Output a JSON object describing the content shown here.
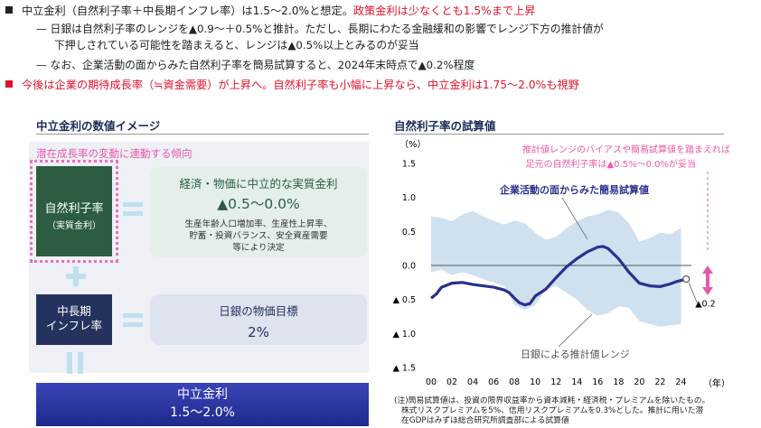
{
  "header": {
    "b1_prefix": "中立金利（自然利子率＋中長期インフレ率）は1.5～2.0%と想定。",
    "b1_red": "政策金利は少なくとも1.5%まで上昇",
    "sub1_line1": "— 日銀は自然利子率のレンジを▲0.9～＋0.5%と推計。ただし、長期にわたる金融緩和の影響でレンジ下方の推計値が",
    "sub1_line2": "下押しされている可能性を踏まえると、レンジは▲0.5%以上とみるのが妥当",
    "sub2": "— なお、企業活動の面からみた自然利子率を簡易試算すると、2024年末時点で▲0.2%程度",
    "b2": "今後は企業の期待成長率（≒資金需要）が上昇へ。自然利子率も小幅に上昇なら、中立金利は1.75～2.0%も視野"
  },
  "left": {
    "title": "中立金利の数値イメージ",
    "pink_label": "潜在成長率の変動に連動する傾向",
    "natural_rate_label": "自然利子率",
    "natural_rate_sub": "（実質金利）",
    "neutral_box_title": "経済・物価に中立的な実質金利",
    "neutral_box_value": "▲0.5～0.0%",
    "neutral_box_note1": "生産年齢人口増加率、生産性上昇率、",
    "neutral_box_note2": "貯蓄・投資バランス、安全資産需要",
    "neutral_box_note3": "等により決定",
    "inflation_label1": "中長期",
    "inflation_label2": "インフレ率",
    "boj_target_title": "日銀の物価目標",
    "boj_target_value": "2%",
    "result_title": "中立金利",
    "result_value": "1.5～2.0%"
  },
  "right": {
    "title": "自然利子率の試算値",
    "annotation_line1": "推計値レンジのバイアスや簡易試算値を踏まえれば",
    "annotation_line2": "足元の自然利子率は▲0.5%～0.0%が妥当",
    "line_label": "企業活動の面からみた簡易試算値",
    "range_label": "日銀による推計値レンジ",
    "endpoint_label": "▲0.2",
    "note1": "(注)簡易試算値は、投資の限界収益率から資本減耗・経済税・プレミアムを除いたもの。",
    "note2": "株式リスクプレミアムを5%、信用リスクプレミアムを0.3%とした。推計に用いた潜",
    "note3": "在GDPはみずほ総合研究所調査部による試算値"
  },
  "colors": {
    "red": "#e0142c",
    "navy": "#1a2d5a",
    "line": "#2a3190",
    "band": "#cfe0ee",
    "pink": "#e85aa8"
  },
  "chart_data": {
    "type": "line",
    "title": "自然利子率の試算値",
    "ylabel": "（%）",
    "xlabel": "（年）",
    "ylim": [
      -1.5,
      1.5
    ],
    "xlim": [
      2000,
      2025
    ],
    "y_ticks": [
      1.5,
      1.0,
      0.5,
      0.0,
      -0.5,
      -1.0,
      -1.5
    ],
    "y_tick_labels": [
      "1.5",
      "1.0",
      "0.5",
      "0.0",
      "▲ 0.5",
      "▲ 1.0",
      "▲ 1.5"
    ],
    "x_ticks": [
      2000,
      2002,
      2004,
      2006,
      2008,
      2010,
      2012,
      2014,
      2016,
      2018,
      2020,
      2022,
      2024
    ],
    "x_tick_labels": [
      "00",
      "02",
      "04",
      "06",
      "08",
      "10",
      "12",
      "14",
      "16",
      "18",
      "20",
      "22",
      "24"
    ],
    "grid": false,
    "series": [
      {
        "name": "企業活動の面からみた簡易試算値",
        "x": [
          2000,
          2000.5,
          2001,
          2002,
          2003,
          2004,
          2005,
          2006,
          2007,
          2007.5,
          2008,
          2008.5,
          2009,
          2009.5,
          2010,
          2011,
          2012,
          2013,
          2014,
          2015,
          2016,
          2016.5,
          2017,
          2018,
          2019,
          2020,
          2021,
          2022,
          2023,
          2023.5,
          2024,
          2024.5
        ],
        "values": [
          -0.48,
          -0.42,
          -0.32,
          -0.26,
          -0.25,
          -0.28,
          -0.3,
          -0.32,
          -0.36,
          -0.4,
          -0.48,
          -0.55,
          -0.58,
          -0.56,
          -0.45,
          -0.35,
          -0.18,
          -0.02,
          0.1,
          0.2,
          0.27,
          0.28,
          0.25,
          0.1,
          -0.1,
          -0.26,
          -0.3,
          -0.31,
          -0.27,
          -0.24,
          -0.22,
          -0.2
        ]
      },
      {
        "name": "日銀による推計値レンジ（上限）",
        "x": [
          2000,
          2001,
          2002,
          2003,
          2004,
          2005,
          2006,
          2007,
          2008,
          2009,
          2010,
          2011,
          2012,
          2013,
          2014,
          2015,
          2016,
          2017,
          2018,
          2019,
          2020,
          2021,
          2022,
          2023,
          2024
        ],
        "values": [
          0.72,
          0.7,
          0.65,
          0.75,
          0.8,
          0.72,
          0.66,
          0.6,
          0.66,
          0.62,
          0.48,
          0.38,
          0.42,
          0.55,
          0.65,
          0.72,
          0.75,
          0.82,
          0.78,
          0.62,
          0.35,
          0.4,
          0.48,
          0.46,
          0.55
        ]
      },
      {
        "name": "日銀による推計値レンジ（下限）",
        "x": [
          2000,
          2001,
          2002,
          2003,
          2004,
          2005,
          2006,
          2007,
          2008,
          2009,
          2010,
          2011,
          2012,
          2013,
          2014,
          2015,
          2016,
          2017,
          2018,
          2019,
          2020,
          2021,
          2022,
          2023,
          2024
        ],
        "values": [
          -0.1,
          -0.06,
          -0.14,
          -0.1,
          -0.14,
          -0.2,
          -0.25,
          -0.3,
          -0.58,
          -0.65,
          -0.58,
          -0.36,
          -0.3,
          -0.4,
          -0.5,
          -0.65,
          -0.74,
          -0.7,
          -0.6,
          -0.62,
          -0.82,
          -0.86,
          -0.9,
          -0.88,
          -0.86
        ]
      }
    ],
    "annotations": [
      "推計値レンジのバイアスや簡易試算値を踏まえれば",
      "足元の自然利子率は▲0.5%～0.0%が妥当",
      "▲0.2"
    ]
  }
}
